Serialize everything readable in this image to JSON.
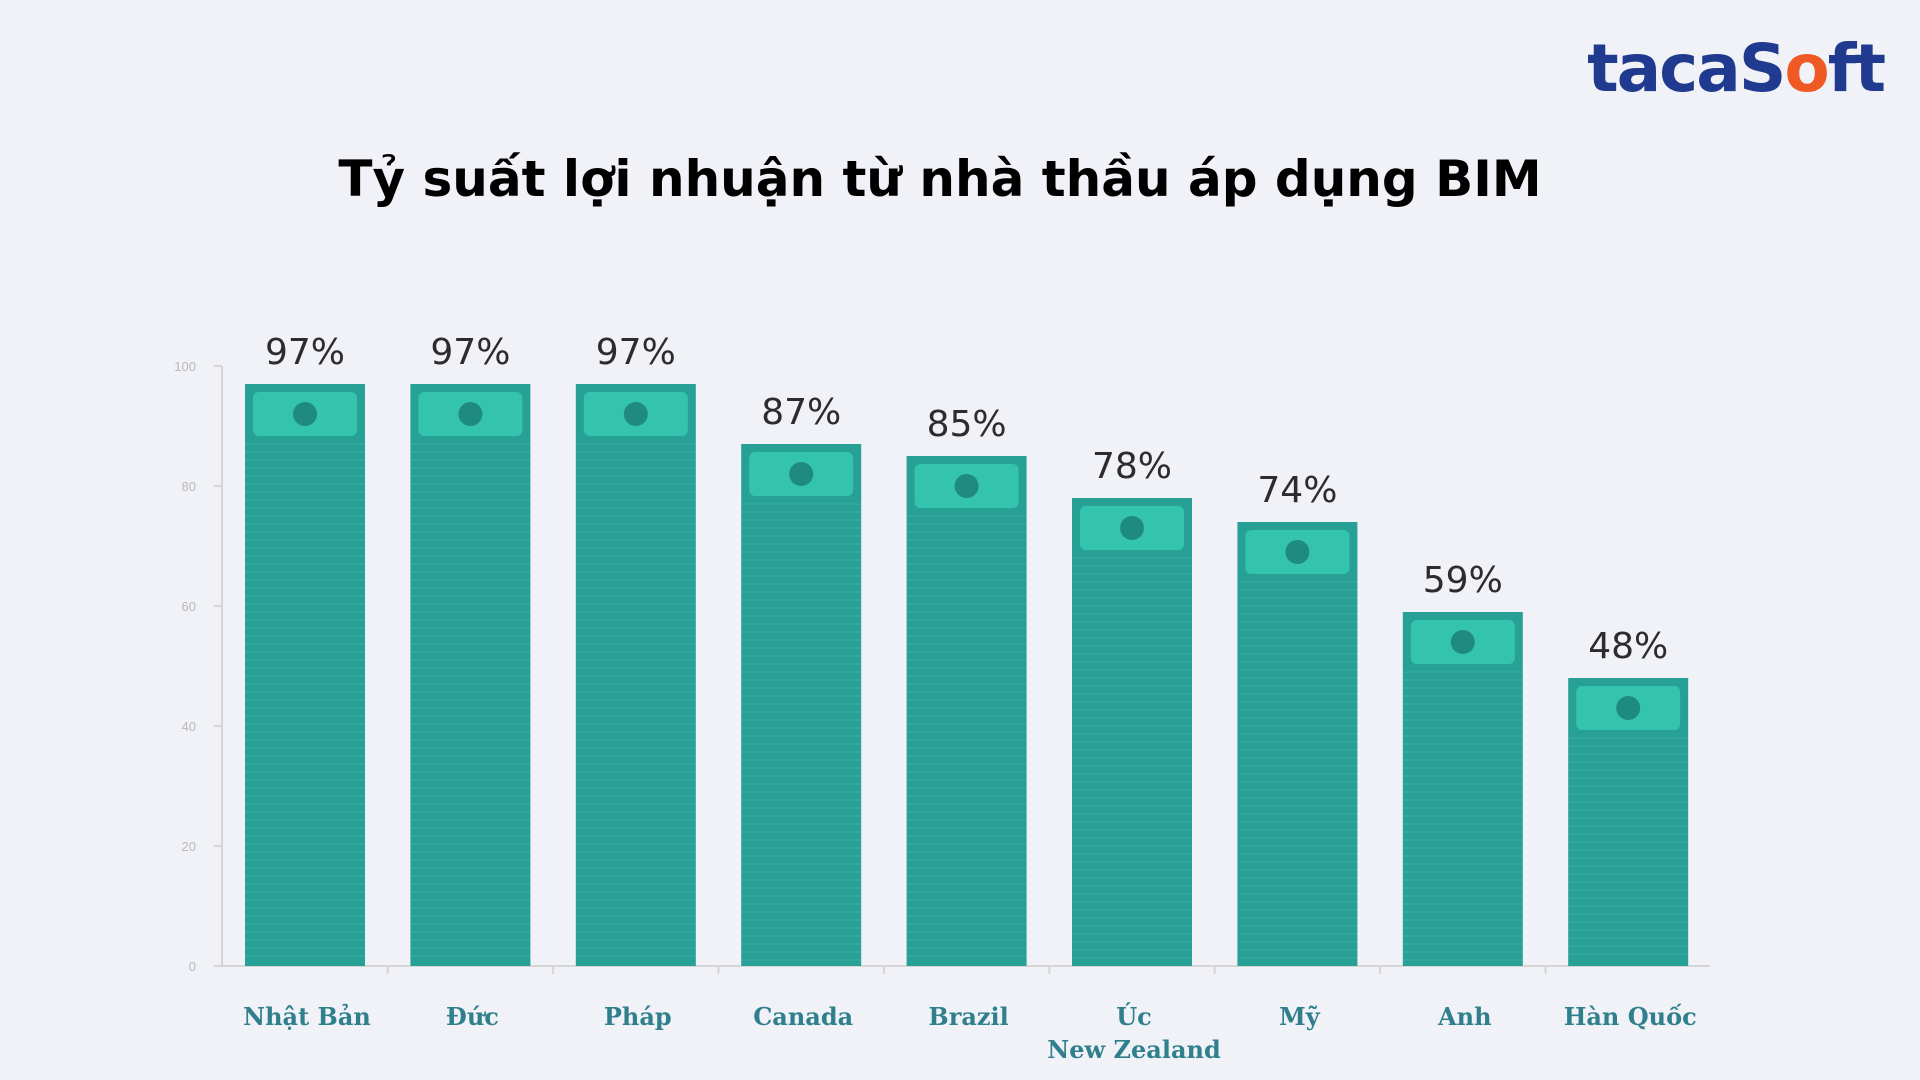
{
  "logo": {
    "part1": "taca",
    "part2": "S",
    "part3": "o",
    "part4": "ft"
  },
  "title": "Tỷ suất lợi nhuận từ nhà thầu áp dụng BIM",
  "colors": {
    "bar": "#27a096",
    "bar_band": "#34c4ad",
    "bar_dot": "#1f8b80",
    "axis": "#d5d5d5",
    "label": "#2f7f8c",
    "logo_blue": "#1f3a8f",
    "logo_orange": "#ef5a24"
  },
  "chart_data": {
    "type": "bar",
    "title": "Tỷ suất lợi nhuận từ nhà thầu áp dụng BIM",
    "categories": [
      "Nhật Bản",
      "Đức",
      "Pháp",
      "Canada",
      "Brazil",
      "Úc\nNew Zealand",
      "Mỹ",
      "Anh",
      "Hàn Quốc"
    ],
    "values": [
      97,
      97,
      97,
      87,
      85,
      78,
      74,
      59,
      48
    ],
    "value_labels": [
      "97%",
      "97%",
      "97%",
      "87%",
      "85%",
      "78%",
      "74%",
      "59%",
      "48%"
    ],
    "ylim": [
      0,
      100
    ],
    "yticks": [
      0,
      20,
      40,
      60,
      80,
      100
    ],
    "xlabel": "",
    "ylabel": "",
    "grid": false,
    "legend": "none"
  }
}
